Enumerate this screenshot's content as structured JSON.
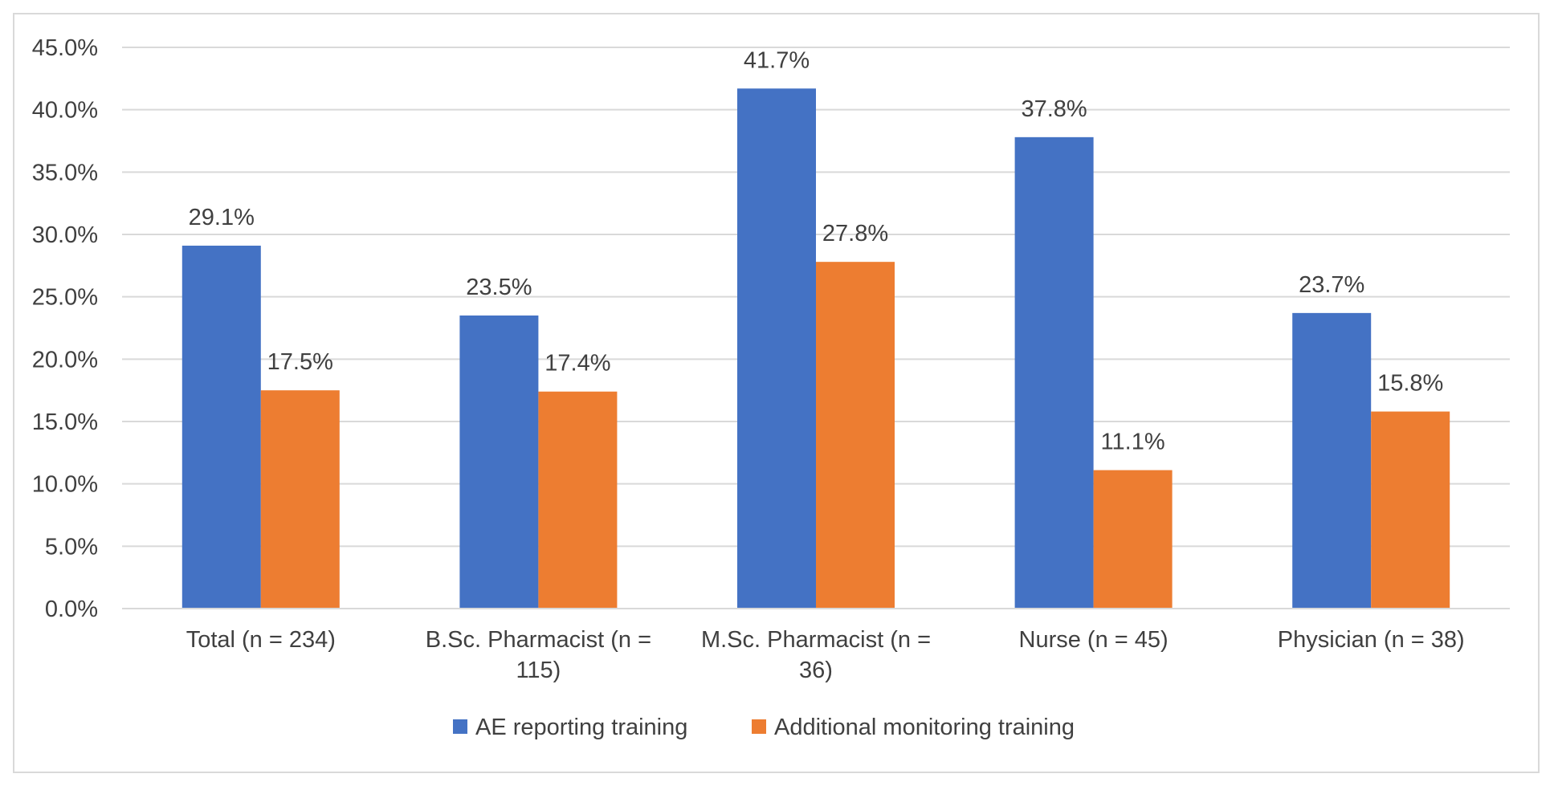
{
  "chart_data": {
    "type": "bar",
    "title": "",
    "xlabel": "",
    "ylabel": "",
    "ylim": [
      0,
      45
    ],
    "yticks": [
      0,
      5,
      10,
      15,
      20,
      25,
      30,
      35,
      40,
      45
    ],
    "ytick_labels": [
      "0.0%",
      "5.0%",
      "10.0%",
      "15.0%",
      "20.0%",
      "25.0%",
      "30.0%",
      "35.0%",
      "40.0%",
      "45.0%"
    ],
    "grid": true,
    "legend_position": "bottom",
    "categories": [
      [
        "Total (n = 234)"
      ],
      [
        "B.Sc. Pharmacist (n =",
        "115)"
      ],
      [
        "M.Sc. Pharmacist (n =",
        "36)"
      ],
      [
        "Nurse (n = 45)"
      ],
      [
        "Physician (n = 38)"
      ]
    ],
    "series": [
      {
        "name": "AE reporting training",
        "color": "#4472C4",
        "values": [
          29.1,
          23.5,
          41.7,
          37.8,
          23.7
        ],
        "labels": [
          "29.1%",
          "23.5%",
          "41.7%",
          "37.8%",
          "23.7%"
        ]
      },
      {
        "name": "Additional monitoring training",
        "color": "#ED7D31",
        "values": [
          17.5,
          17.4,
          27.8,
          11.1,
          15.8
        ],
        "labels": [
          "17.5%",
          "17.4%",
          "27.8%",
          "11.1%",
          "15.8%"
        ]
      }
    ]
  }
}
